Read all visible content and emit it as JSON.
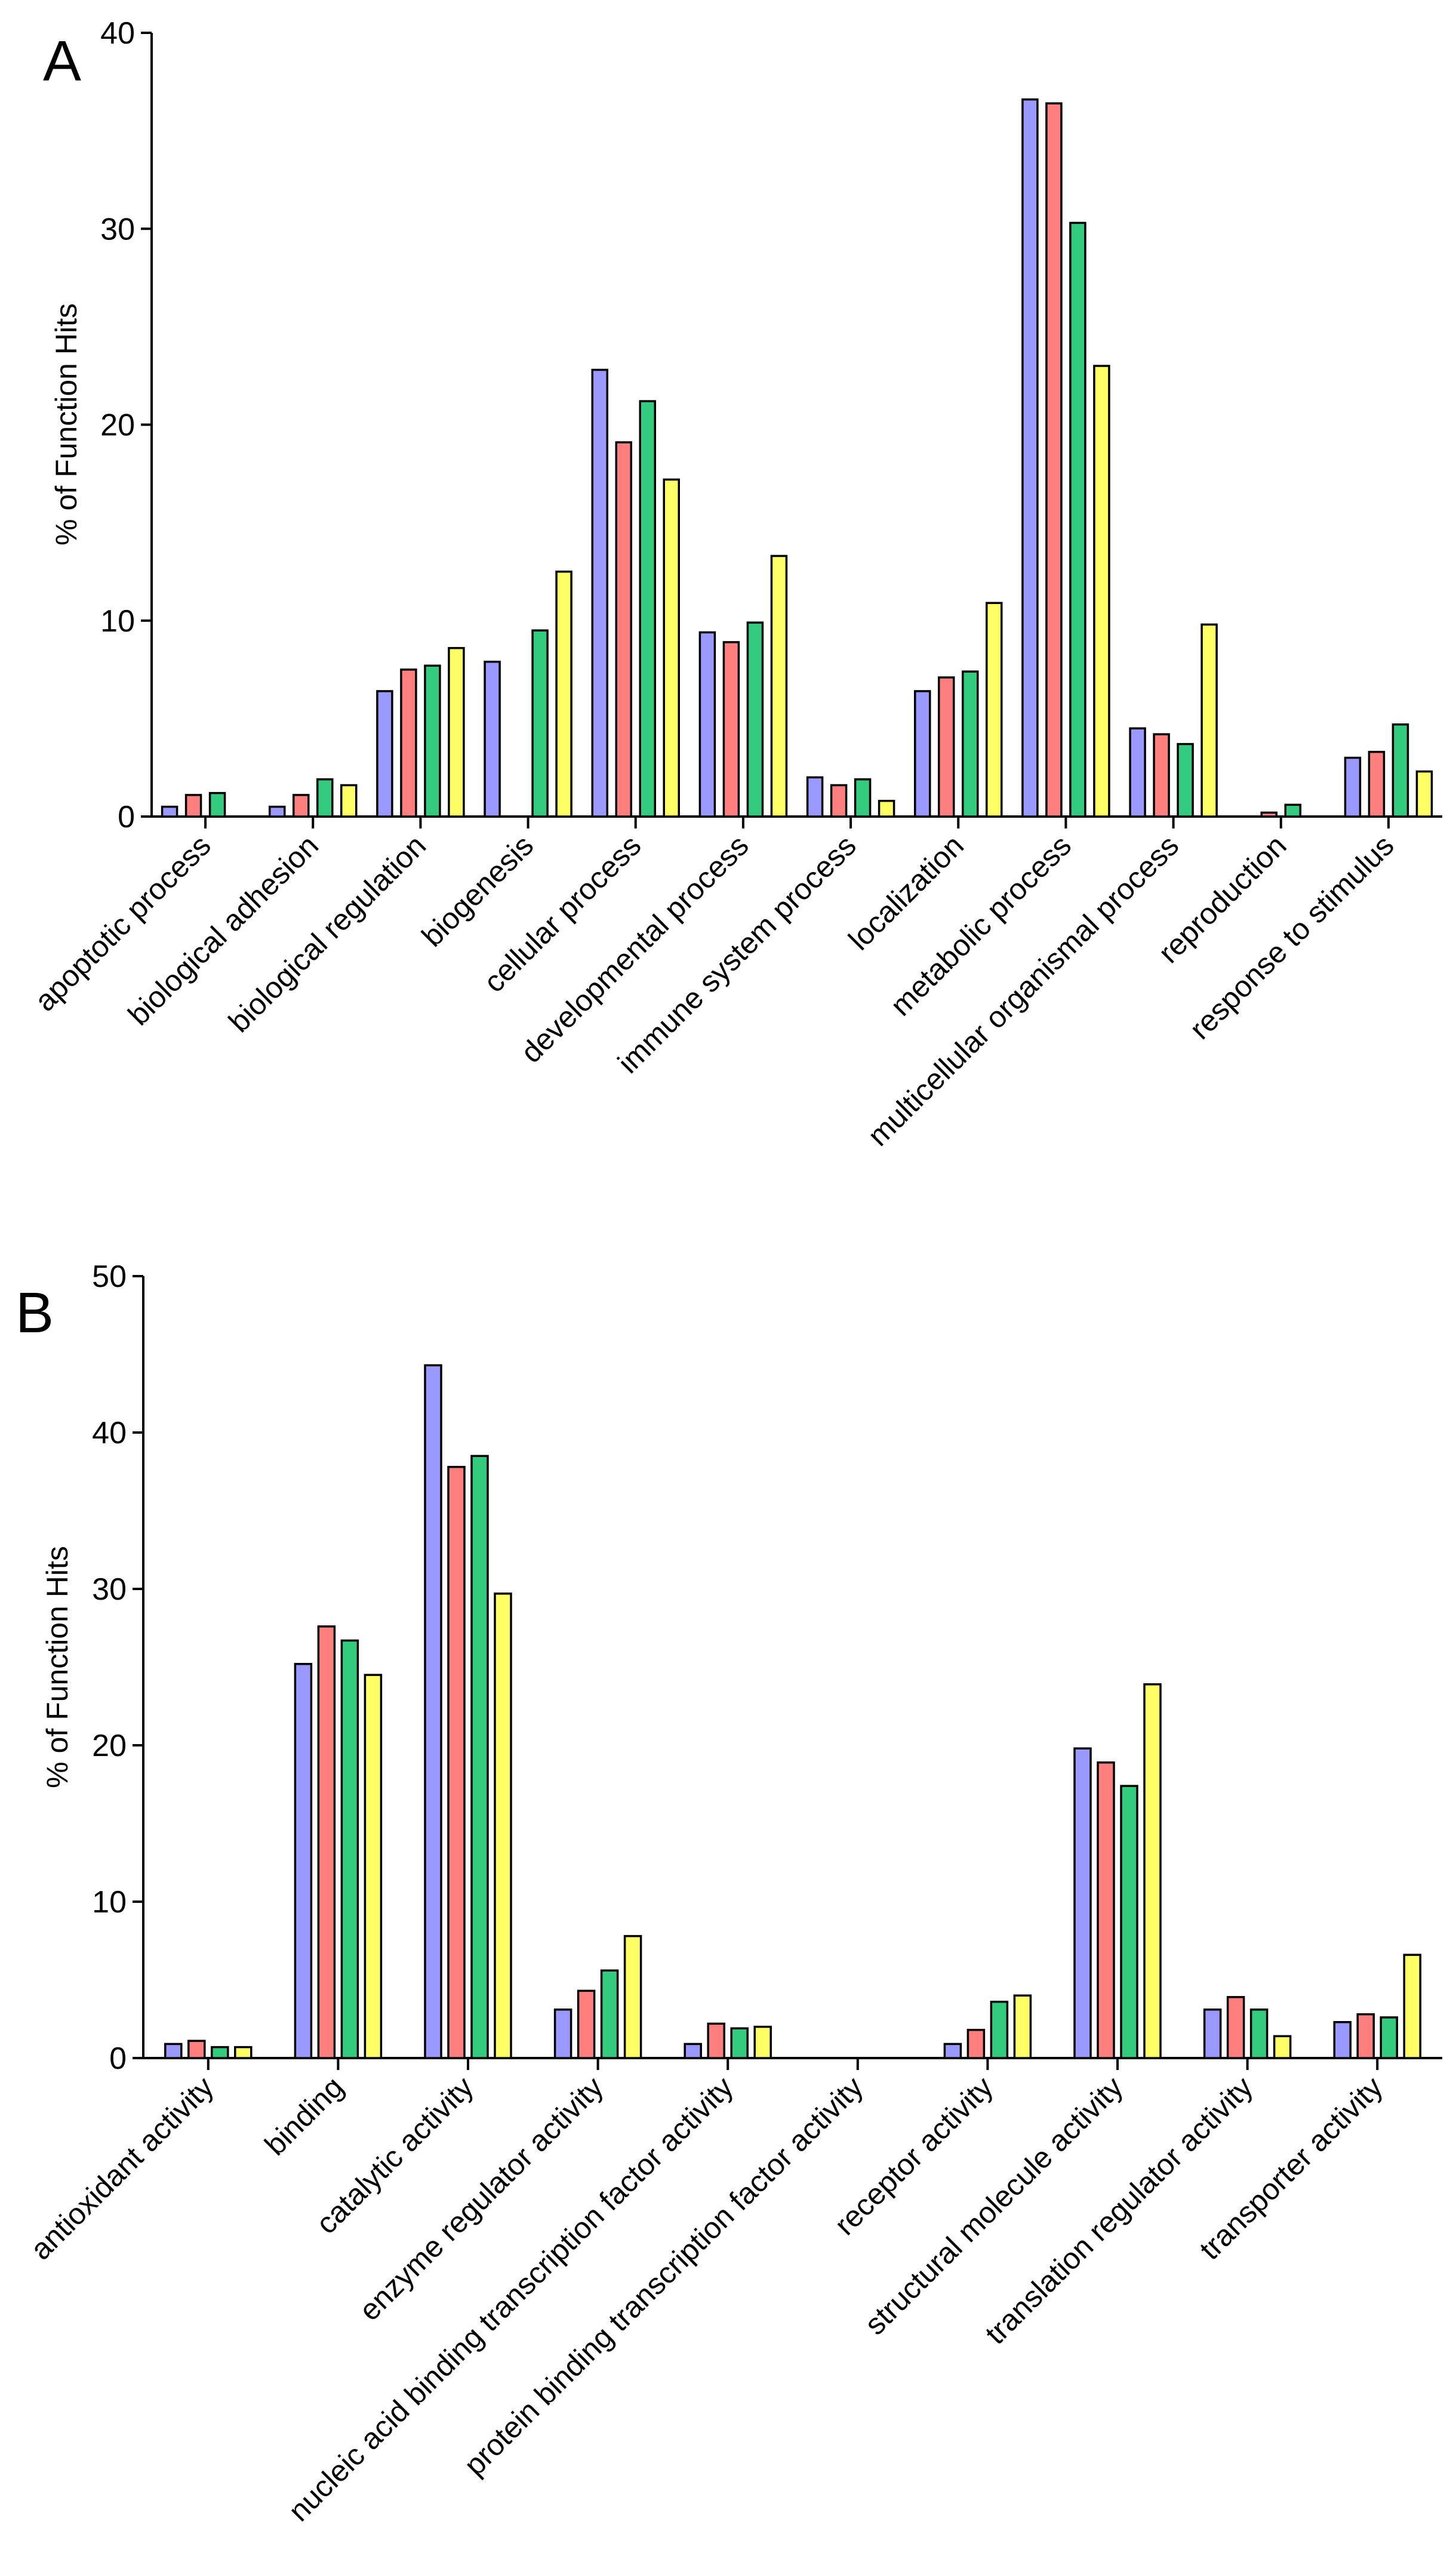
{
  "chart_data": [
    {
      "type": "bar",
      "panel_label": "A",
      "ylabel": "% of Function Hits",
      "ylim": [
        0,
        40
      ],
      "yticks": [
        0,
        10,
        20,
        30,
        40
      ],
      "categories": [
        "apoptotic process",
        "biological adhesion",
        "biological regulation",
        "biogenesis",
        "cellular process",
        "developmental process",
        "immune system process",
        "localization",
        "metabolic process",
        "multicellular organismal process",
        "reproduction",
        "response to stimulus"
      ],
      "series": [
        {
          "color": "#9999ff",
          "values": [
            0.5,
            0.5,
            6.4,
            7.9,
            22.8,
            9.4,
            2.0,
            6.4,
            36.6,
            4.5,
            0.0,
            3.0
          ]
        },
        {
          "color": "#ff7f7f",
          "values": [
            1.1,
            1.1,
            7.5,
            0.0,
            19.1,
            8.9,
            1.6,
            7.1,
            36.4,
            4.2,
            0.2,
            3.3
          ]
        },
        {
          "color": "#33cc7f",
          "values": [
            1.2,
            1.9,
            7.7,
            9.5,
            21.2,
            9.9,
            1.9,
            7.4,
            30.3,
            3.7,
            0.6,
            4.7
          ]
        },
        {
          "color": "#ffff66",
          "values": [
            0.0,
            1.6,
            8.6,
            12.5,
            17.2,
            13.3,
            0.8,
            10.9,
            23.0,
            9.8,
            0.0,
            2.3
          ]
        }
      ]
    },
    {
      "type": "bar",
      "panel_label": "B",
      "ylabel": "% of Function Hits",
      "ylim": [
        0,
        50
      ],
      "yticks": [
        0,
        10,
        20,
        30,
        40,
        50
      ],
      "categories": [
        "antioxidant activity",
        "binding",
        "catalytic activity",
        "enzyme regulator activity",
        "nucleic acid binding transcription factor activity",
        "protein binding transcription factor activity",
        "receptor activity",
        "structural molecule activity",
        "translation regulator activity",
        "transporter activity"
      ],
      "series": [
        {
          "color": "#9999ff",
          "values": [
            0.9,
            25.2,
            44.3,
            3.1,
            0.9,
            0.0,
            0.9,
            19.8,
            3.1,
            2.3
          ]
        },
        {
          "color": "#ff7f7f",
          "values": [
            1.1,
            27.6,
            37.8,
            4.3,
            2.2,
            0.0,
            1.8,
            18.9,
            3.9,
            2.8
          ]
        },
        {
          "color": "#33cc7f",
          "values": [
            0.7,
            26.7,
            38.5,
            5.6,
            1.9,
            0.0,
            3.6,
            17.4,
            3.1,
            2.6
          ]
        },
        {
          "color": "#ffff66",
          "values": [
            0.7,
            24.5,
            29.7,
            7.8,
            2.0,
            0.0,
            4.0,
            23.9,
            1.4,
            6.6
          ]
        }
      ]
    }
  ]
}
